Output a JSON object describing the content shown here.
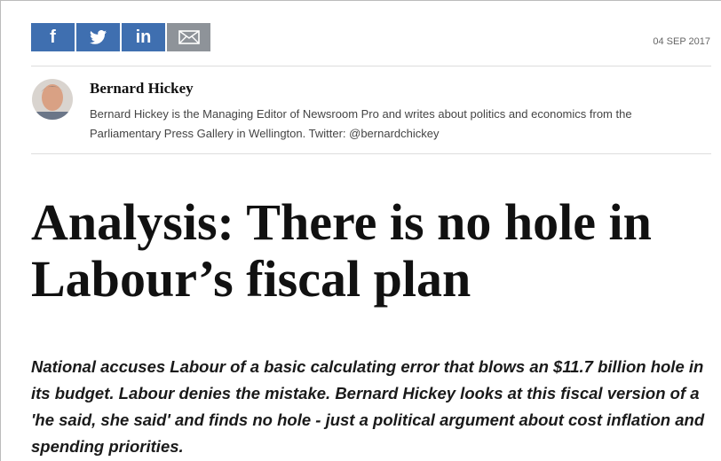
{
  "share": {
    "facebook": "f",
    "linkedin": "in"
  },
  "date": "04 SEP 2017",
  "author": {
    "name": "Bernard Hickey",
    "bio": "Bernard Hickey is the Managing Editor of Newsroom Pro and writes about politics and economics from the Parliamentary Press Gallery in Wellington. Twitter: @bernardchickey"
  },
  "headline": "Analysis: There is no hole in Labour’s fiscal plan",
  "lead": "National accuses Labour of a basic calculating error that blows an $11.7 billion hole in its budget. Labour denies the mistake. Bernard Hickey looks at this fiscal version of a 'he said, she said' and finds no hole - just a political argument about cost inflation and spending priorities."
}
